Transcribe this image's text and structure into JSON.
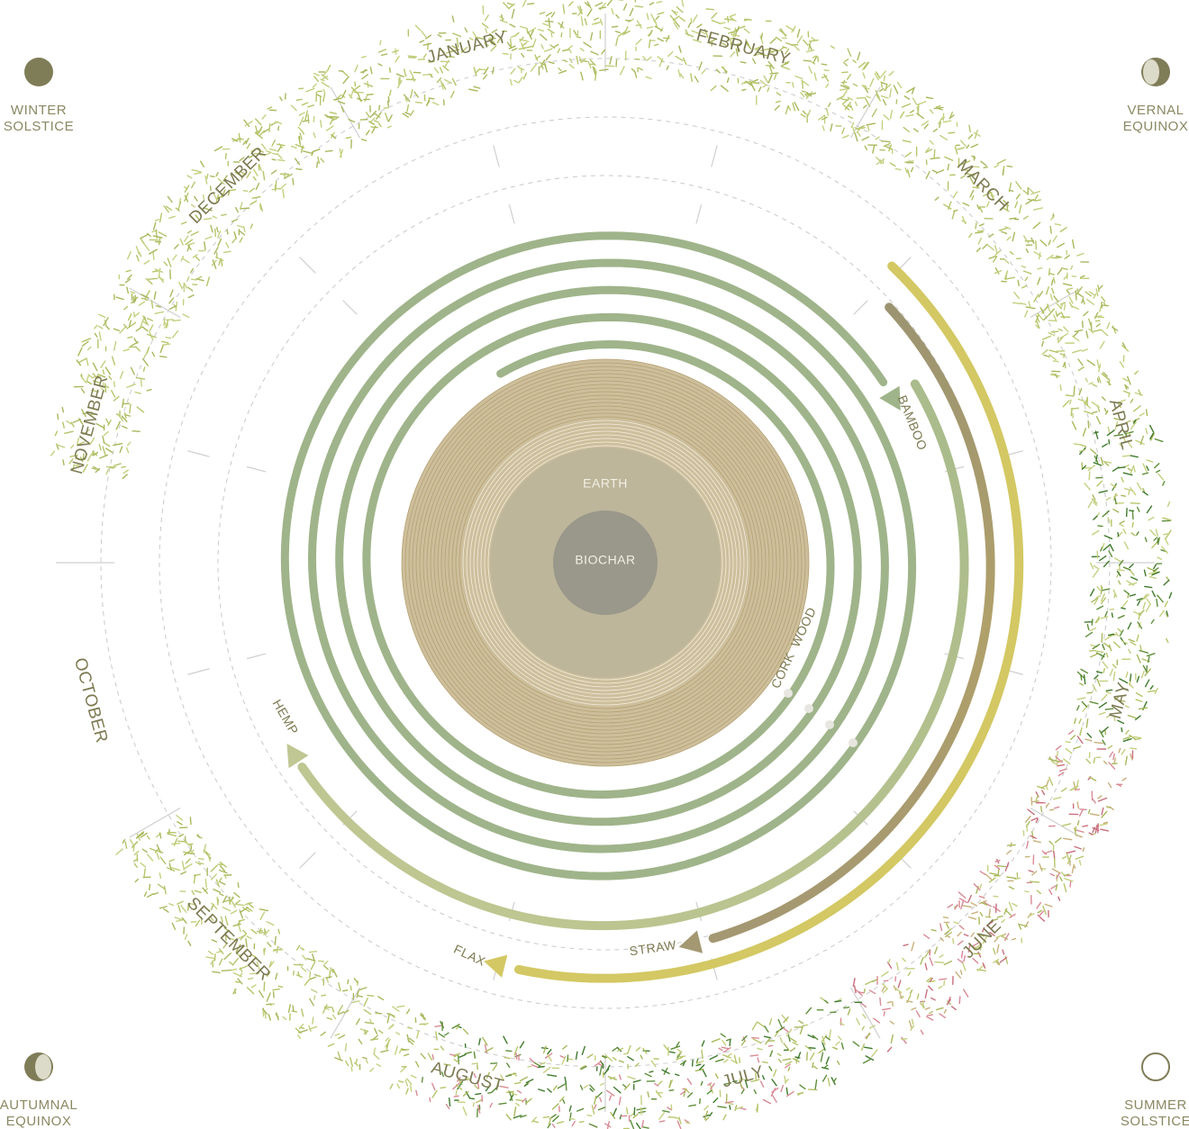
{
  "corners": [
    {
      "lines": [
        "WINTER",
        "SOLSTICE"
      ]
    },
    {
      "lines": [
        "VERNAL",
        "EQUINOX"
      ]
    },
    {
      "lines": [
        "AUTUMNAL",
        "EQUINOX"
      ]
    },
    {
      "lines": [
        "SUMMER",
        "SOLSTICE"
      ]
    }
  ],
  "months": [
    "JANUARY",
    "FEBRUARY",
    "MARCH",
    "APRIL",
    "MAY",
    "JUNE",
    "JULY",
    "AUGUST",
    "SEPTEMBER",
    "OCTOBER",
    "NOVEMBER",
    "DECEMBER"
  ],
  "core": {
    "outer": "EARTH",
    "inner": "BIOCHAR"
  },
  "materials": {
    "bamboo": "BAMBOO",
    "cork": "CORK",
    "wood": "WOOD",
    "hemp": "HEMP",
    "straw": "STRAW",
    "flax": "FLAX"
  }
}
